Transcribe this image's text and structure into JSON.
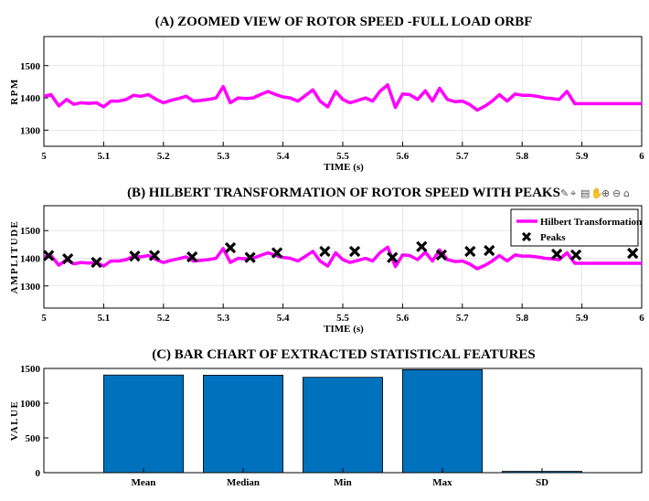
{
  "colors": {
    "line": "#ff00ff",
    "bar": "#0072bd",
    "axis": "#000000",
    "grid": "#dddddd"
  },
  "toolbar": {
    "icons": [
      "brush-icon",
      "data-tip-icon",
      "legend-icon",
      "pan-icon",
      "zoom-in-icon",
      "zoom-out-icon",
      "home-icon"
    ]
  },
  "chart_data": [
    {
      "id": "A",
      "type": "line",
      "title": "(A) ZOOMED VIEW OF ROTOR SPEED -FULL LOAD ORBF",
      "xlabel": "TIME (s)",
      "ylabel": "RPM",
      "xlim": [
        5,
        6
      ],
      "ylim": [
        1250,
        1590
      ],
      "xticks": [
        5,
        5.1,
        5.2,
        5.3,
        5.4,
        5.5,
        5.6,
        5.7,
        5.8,
        5.9,
        6
      ],
      "yticks": [
        1300,
        1400,
        1500
      ],
      "series": [
        {
          "name": "Rotor Speed",
          "x": [
            5.0,
            5.012,
            5.025,
            5.038,
            5.05,
            5.062,
            5.075,
            5.088,
            5.1,
            5.112,
            5.125,
            5.138,
            5.15,
            5.162,
            5.175,
            5.188,
            5.2,
            5.212,
            5.225,
            5.238,
            5.25,
            5.262,
            5.275,
            5.288,
            5.3,
            5.312,
            5.325,
            5.338,
            5.35,
            5.362,
            5.375,
            5.388,
            5.4,
            5.412,
            5.425,
            5.438,
            5.45,
            5.462,
            5.475,
            5.488,
            5.5,
            5.512,
            5.525,
            5.538,
            5.55,
            5.562,
            5.575,
            5.588,
            5.6,
            5.612,
            5.625,
            5.638,
            5.65,
            5.662,
            5.675,
            5.688,
            5.7,
            5.712,
            5.725,
            5.738,
            5.75,
            5.762,
            5.775,
            5.788,
            5.8,
            5.812,
            5.825,
            5.838,
            5.85,
            5.862,
            5.875,
            5.888,
            5.9,
            5.912,
            5.925,
            5.938,
            5.95,
            5.962,
            5.975,
            5.988,
            6.0
          ],
          "y": [
            1405,
            1410,
            1375,
            1395,
            1380,
            1385,
            1383,
            1385,
            1372,
            1390,
            1390,
            1395,
            1408,
            1405,
            1410,
            1395,
            1385,
            1392,
            1398,
            1405,
            1390,
            1392,
            1395,
            1400,
            1435,
            1385,
            1400,
            1398,
            1400,
            1410,
            1420,
            1410,
            1403,
            1400,
            1390,
            1408,
            1425,
            1390,
            1372,
            1420,
            1395,
            1385,
            1392,
            1400,
            1390,
            1420,
            1440,
            1370,
            1412,
            1410,
            1395,
            1422,
            1390,
            1430,
            1395,
            1388,
            1390,
            1380,
            1362,
            1375,
            1390,
            1410,
            1390,
            1412,
            1408,
            1408,
            1405,
            1400,
            1398,
            1395,
            1420,
            1382,
            1382,
            1382,
            1382,
            1382,
            1382,
            1382,
            1382,
            1382,
            1382
          ]
        }
      ]
    },
    {
      "id": "B",
      "type": "line",
      "title": "(B) HILBERT TRANSFORMATION OF ROTOR SPEED WITH PEAKS",
      "xlabel": "TIME (s)",
      "ylabel": "AMPLITUDE",
      "xlim": [
        5,
        6
      ],
      "ylim": [
        1220,
        1590
      ],
      "xticks": [
        5,
        5.1,
        5.2,
        5.3,
        5.4,
        5.5,
        5.6,
        5.7,
        5.8,
        5.9,
        6
      ],
      "yticks": [
        1300,
        1400,
        1500
      ],
      "legend": {
        "position": "top-right",
        "entries": [
          "Hilbert Transformation",
          "Peaks"
        ]
      },
      "peaks": {
        "name": "Peaks",
        "x": [
          5.008,
          5.04,
          5.088,
          5.152,
          5.185,
          5.248,
          5.312,
          5.345,
          5.39,
          5.47,
          5.52,
          5.583,
          5.632,
          5.665,
          5.713,
          5.745,
          5.858,
          5.89,
          5.985
        ],
        "y": [
          1410,
          1398,
          1385,
          1408,
          1410,
          1405,
          1438,
          1403,
          1420,
          1425,
          1425,
          1403,
          1442,
          1412,
          1425,
          1428,
          1415,
          1412,
          1418
        ]
      }
    },
    {
      "id": "C",
      "type": "bar",
      "title": "(C) BAR CHART OF EXTRACTED STATISTICAL FEATURES",
      "xlabel": "",
      "ylabel": "VALUE",
      "ylim": [
        0,
        1500
      ],
      "yticks": [
        0,
        500,
        1000,
        1500
      ],
      "categories": [
        "Mean",
        "Median",
        "Min",
        "Max",
        "SD"
      ],
      "values": [
        1405,
        1403,
        1372,
        1482,
        18
      ]
    }
  ]
}
